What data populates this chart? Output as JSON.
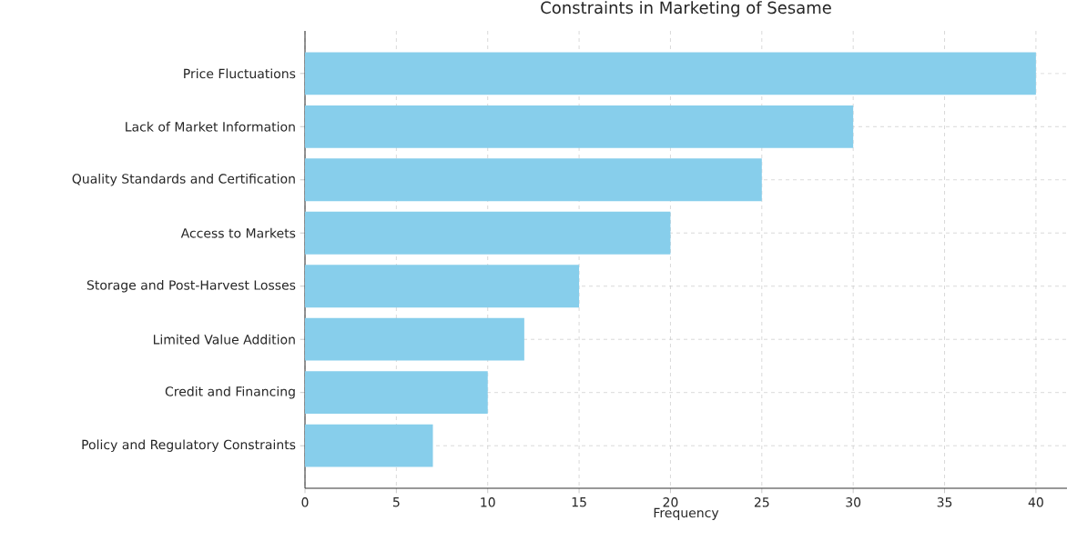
{
  "chart_data": {
    "type": "bar",
    "orientation": "horizontal",
    "title": "Constraints in Marketing of Sesame",
    "xlabel": "Frequency",
    "categories": [
      "Price Fluctuations",
      "Lack of Market Information",
      "Quality Standards and Certification",
      "Access to Markets",
      "Storage and Post-Harvest Losses",
      "Limited Value Addition",
      "Credit and Financing",
      "Policy and Regulatory Constraints"
    ],
    "values": [
      40,
      30,
      25,
      20,
      15,
      12,
      10,
      7
    ],
    "color": "#87ceeb",
    "xlim": [
      0,
      41.7
    ],
    "xticks": [
      0,
      5,
      10,
      15,
      20,
      25,
      30,
      35,
      40
    ],
    "grid": true
  }
}
